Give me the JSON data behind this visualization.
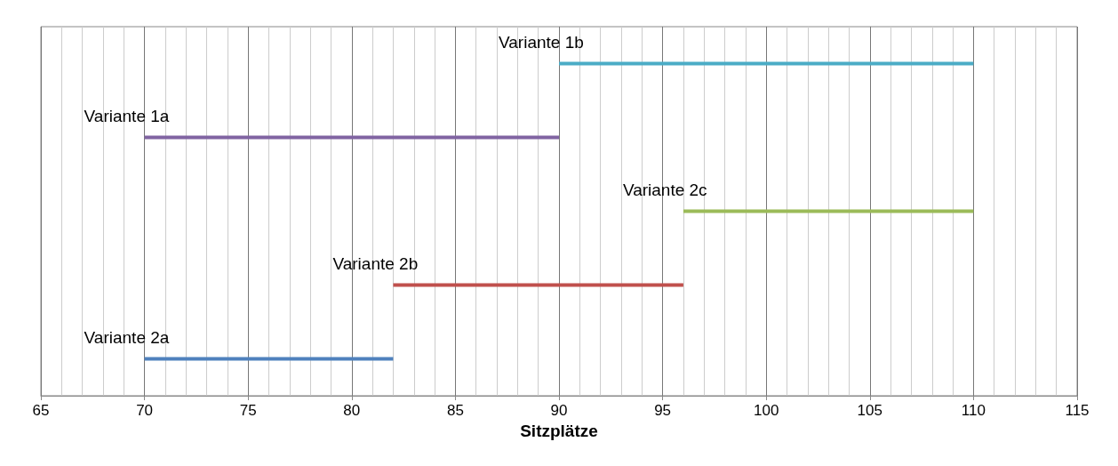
{
  "chart_data": {
    "type": "bar",
    "orientation": "horizontal",
    "xlabel": "Sitzplätze",
    "xlim": [
      65,
      115
    ],
    "xticks": [
      65,
      70,
      75,
      80,
      85,
      90,
      95,
      100,
      105,
      110,
      115
    ],
    "grid": "x",
    "categories": [
      null,
      null,
      null,
      null,
      null
    ],
    "base": [
      90,
      70,
      96,
      82,
      70
    ],
    "values": [
      20,
      20,
      14,
      14,
      12
    ],
    "colors": [
      "#4bacc6",
      "#8064a2",
      "#9bbb59",
      "#c0504d",
      "#4f81bd"
    ],
    "annotations": [
      "Variante 1b",
      "Variante 1a",
      "Variante 2c",
      "Variante 2b",
      "Variante 2a"
    ]
  }
}
